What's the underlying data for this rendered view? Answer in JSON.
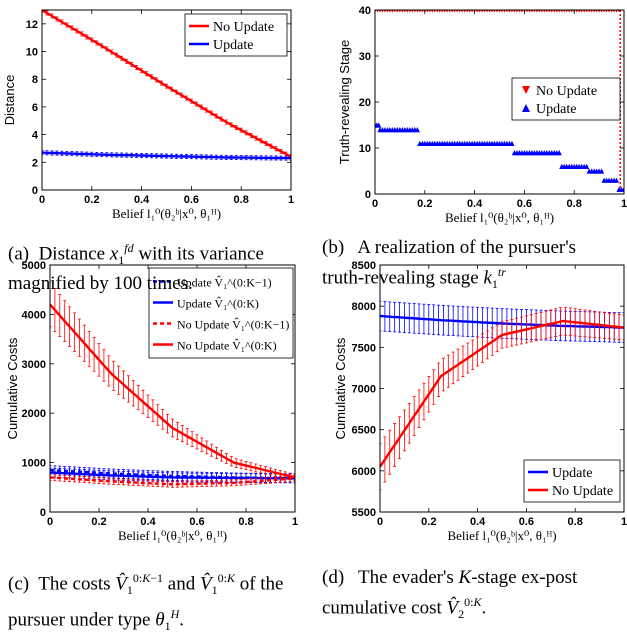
{
  "chart_data": [
    {
      "id": "a",
      "type": "line",
      "caption": "(a)  Distance x₁^fd with its variance magnified by 100 times.",
      "ylabel": "Distance",
      "xlabel": "Belief l₁⁰(θ₂ᵇ|x⁰, θ₁ᴴ)",
      "xlim": [
        0,
        1
      ],
      "ylim": [
        0,
        13
      ],
      "xticks": [
        "0",
        "0.2",
        "0.4",
        "0.6",
        "0.8",
        "1"
      ],
      "yticks": [
        "0",
        "2",
        "4",
        "6",
        "8",
        "10",
        "12"
      ],
      "grid": false,
      "legend": "top-right",
      "series": [
        {
          "name": "No Update",
          "color": "#ff0000",
          "x": [
            0,
            0.25,
            0.5,
            0.75,
            1.0
          ],
          "y": [
            13.0,
            10.3,
            7.5,
            4.8,
            2.4
          ],
          "err": 0.15
        },
        {
          "name": "Update",
          "color": "#0000ff",
          "x": [
            0,
            0.25,
            0.5,
            0.75,
            1.0
          ],
          "y": [
            2.7,
            2.55,
            2.45,
            2.35,
            2.3
          ],
          "err": 0.15
        }
      ]
    },
    {
      "id": "b",
      "type": "scatter",
      "caption": "(b)  A realization of the pursuer's truth-revealing stage k₁^tr",
      "ylabel": "Truth-revealing Stage",
      "xlabel": "Belief l₁⁰(θ₂ᵇ|x⁰, θ₁ᴴ)",
      "xlim": [
        0,
        1
      ],
      "ylim": [
        0,
        40
      ],
      "xticks": [
        "0",
        "0.2",
        "0.4",
        "0.6",
        "0.8",
        "1"
      ],
      "yticks": [
        "0",
        "10",
        "20",
        "30",
        "40"
      ],
      "grid": false,
      "legend": "right",
      "series": [
        {
          "name": "No Update",
          "color": "#ff0000",
          "marker": "triangle-down",
          "segments": [
            {
              "x0": 0,
              "x1": 0.98,
              "y": 40
            }
          ],
          "drop": {
            "x": 0.985,
            "y0": 40,
            "y1": 1
          }
        },
        {
          "name": "Update",
          "color": "#0000ff",
          "marker": "triangle-up",
          "segments": [
            {
              "x0": 0,
              "x1": 0.015,
              "y": 15
            },
            {
              "x0": 0.02,
              "x1": 0.17,
              "y": 14
            },
            {
              "x0": 0.18,
              "x1": 0.55,
              "y": 11
            },
            {
              "x0": 0.56,
              "x1": 0.74,
              "y": 9
            },
            {
              "x0": 0.75,
              "x1": 0.85,
              "y": 6
            },
            {
              "x0": 0.86,
              "x1": 0.91,
              "y": 5
            },
            {
              "x0": 0.92,
              "x1": 0.97,
              "y": 3
            },
            {
              "x0": 0.98,
              "x1": 1.0,
              "y": 1
            }
          ]
        }
      ]
    },
    {
      "id": "c",
      "type": "line",
      "caption": "(c)  The costs V̂₁^(0:K−1) and V̂₁^(0:K) of the pursuer under type θ₁ᴴ.",
      "ylabel": "Cumulative Costs",
      "xlabel": "Belief l₁⁰(θ₂ᵇ|x⁰, θ₁ᴴ)",
      "xlim": [
        0,
        1
      ],
      "ylim": [
        0,
        5000
      ],
      "xticks": [
        "0",
        "0.2",
        "0.4",
        "0.6",
        "0.8",
        "1"
      ],
      "yticks": [
        "0",
        "1000",
        "2000",
        "3000",
        "4000",
        "5000"
      ],
      "grid": false,
      "legend": "top-right",
      "series": [
        {
          "name": "Update V̂₁^(0:K−1)",
          "color": "#0000ff",
          "dash": true,
          "x": [
            0,
            0.25,
            0.5,
            0.75,
            1.0
          ],
          "y": [
            850,
            780,
            730,
            700,
            680
          ],
          "err": 90
        },
        {
          "name": "Update V̂₁^(0:K)",
          "color": "#0000ff",
          "dash": false,
          "x": [
            0,
            0.25,
            0.5,
            0.75,
            1.0
          ],
          "y": [
            800,
            740,
            700,
            690,
            680
          ],
          "err": 90
        },
        {
          "name": "No Update V̂₁^(0:K−1)",
          "color": "#ff0000",
          "dash": true,
          "x": [
            0,
            0.25,
            0.5,
            0.75,
            1.0
          ],
          "y": [
            700,
            620,
            560,
            590,
            680
          ],
          "err": 60
        },
        {
          "name": "No Update V̂₁^(0:K)",
          "color": "#ff0000",
          "dash": false,
          "x": [
            0,
            0.25,
            0.5,
            0.75,
            1.0
          ],
          "y": [
            4200,
            2800,
            1700,
            1000,
            700
          ],
          "errs": [
            450,
            300,
            180,
            90,
            60
          ]
        }
      ]
    },
    {
      "id": "d",
      "type": "line",
      "caption": "(d)  The evader's K-stage ex-post cumulative cost V̂₂^(0:K).",
      "ylabel": "Cumulative Costs",
      "xlabel": "Belief l₁⁰(θ₂ᵇ|x⁰, θ₁ᴴ)",
      "xlim": [
        0,
        1
      ],
      "ylim": [
        5500,
        8500
      ],
      "xticks": [
        "0",
        "0.2",
        "0.4",
        "0.6",
        "0.8",
        "1"
      ],
      "yticks": [
        "5500",
        "6000",
        "6500",
        "7000",
        "7500",
        "8000",
        "8500"
      ],
      "grid": false,
      "legend": "bottom-right",
      "series": [
        {
          "name": "Update",
          "color": "#0000ff",
          "x": [
            0,
            0.25,
            0.5,
            0.75,
            1.0
          ],
          "y": [
            7880,
            7830,
            7790,
            7760,
            7740
          ],
          "err": 180
        },
        {
          "name": "No Update",
          "color": "#ff0000",
          "x": [
            0,
            0.25,
            0.5,
            0.75,
            1.0
          ],
          "y": [
            6050,
            7150,
            7650,
            7820,
            7740
          ],
          "errs": [
            280,
            200,
            160,
            170,
            150
          ]
        }
      ]
    }
  ]
}
